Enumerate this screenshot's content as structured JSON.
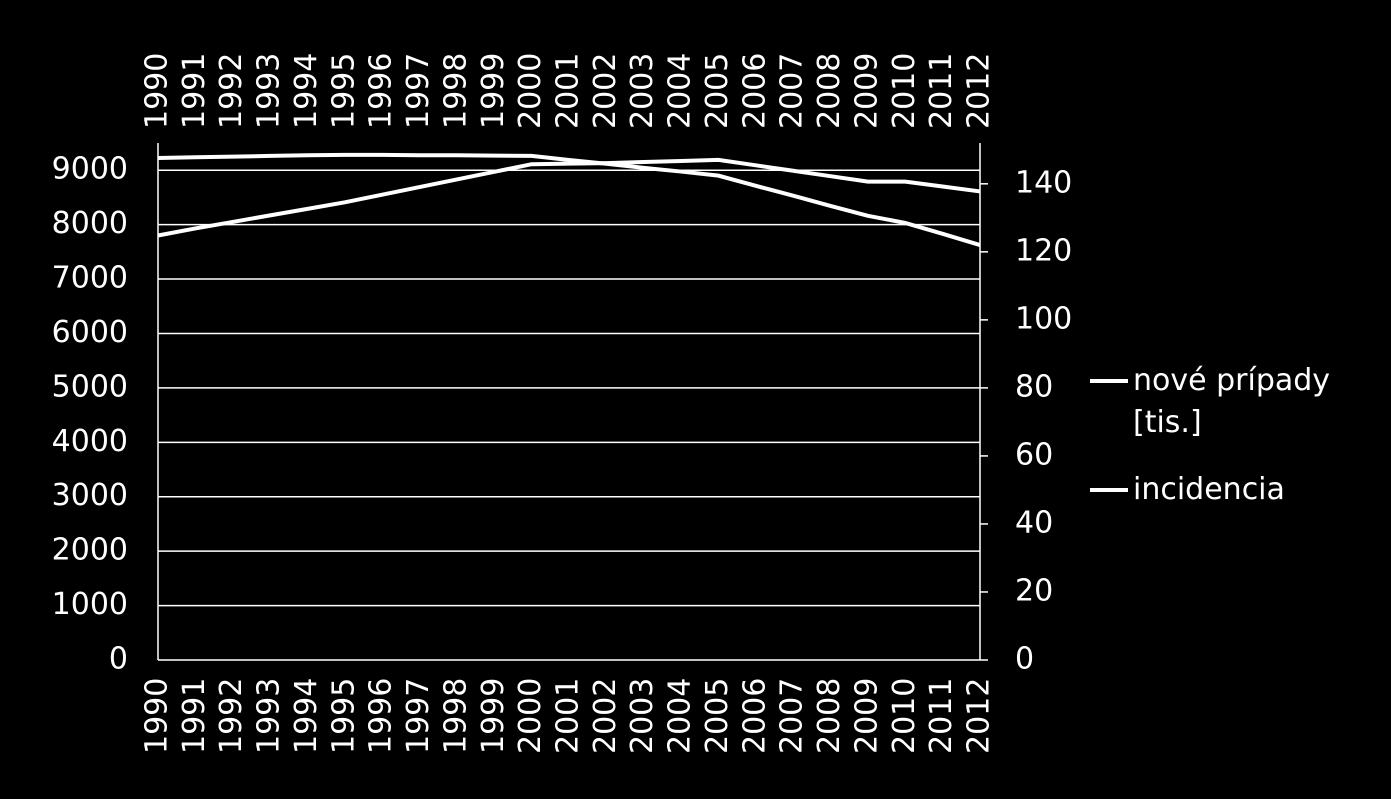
{
  "chart_data": {
    "type": "line",
    "categories": [
      "1990",
      "1991",
      "1992",
      "1993",
      "1994",
      "1995",
      "1996",
      "1997",
      "1998",
      "1999",
      "2000",
      "2001",
      "2002",
      "2003",
      "2004",
      "2005",
      "2006",
      "2007",
      "2008",
      "2009",
      "2010",
      "2011",
      "2012"
    ],
    "series": [
      {
        "name": "nové prípady [tis.]",
        "color": "#ffffff",
        "values": [
          7800,
          7930,
          8050,
          8170,
          8290,
          8410,
          8550,
          8690,
          8830,
          8970,
          9110,
          9120,
          9130,
          9150,
          9170,
          9190,
          9090,
          8990,
          8890,
          8790,
          8790,
          8700,
          8610
        ]
      },
      {
        "name": "incidencia",
        "color": "#ffffff",
        "axis": "y2",
        "values": [
          147.6,
          147.8,
          148.0,
          148.2,
          148.4,
          148.5,
          148.5,
          148.4,
          148.4,
          148.3,
          148.2,
          147.0,
          145.9,
          144.7,
          143.6,
          142.4,
          139.4,
          136.5,
          133.5,
          130.6,
          128.5,
          125.3,
          122.0
        ]
      }
    ],
    "ylim": [
      0,
      9500
    ],
    "yticks": [
      0,
      1000,
      2000,
      3000,
      4000,
      5000,
      6000,
      7000,
      8000,
      9000
    ],
    "y2lim": [
      0,
      152
    ],
    "y2ticks": [
      0,
      20,
      40,
      60,
      80,
      100,
      120,
      140
    ],
    "grid": true
  }
}
